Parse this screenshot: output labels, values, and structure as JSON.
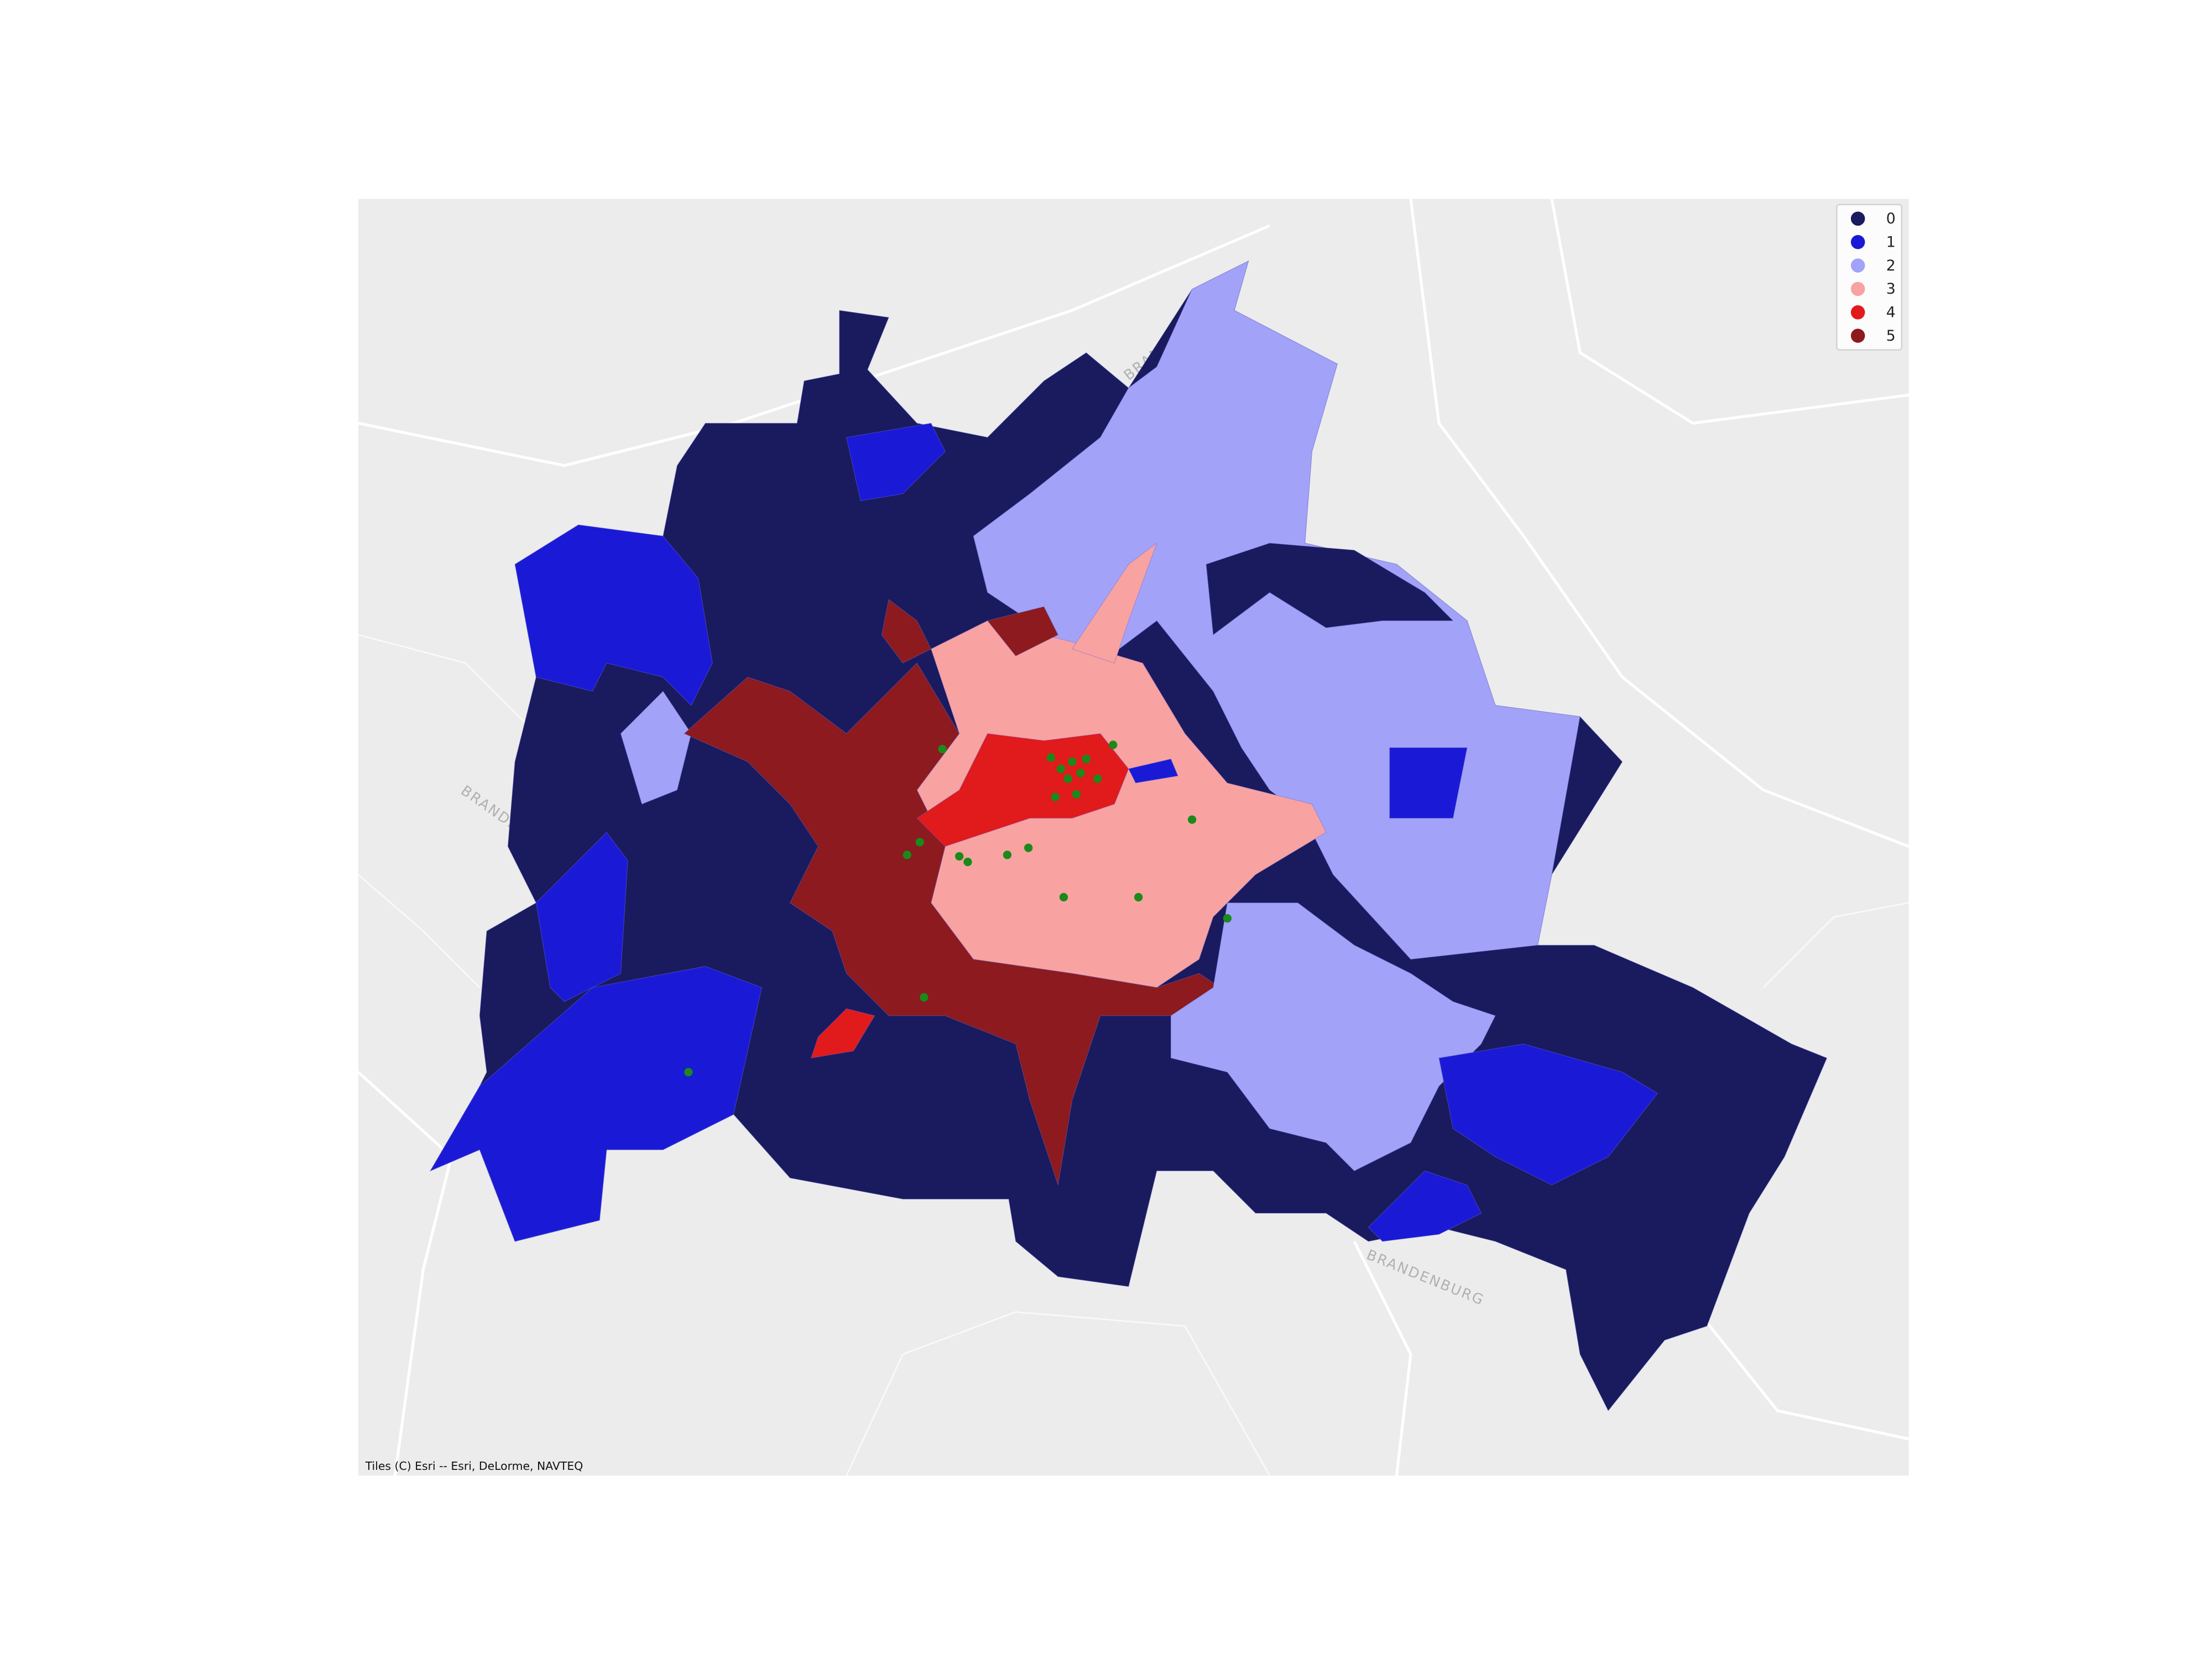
{
  "map": {
    "legend": [
      {
        "label": "0",
        "color": "#1a1a5e"
      },
      {
        "label": "1",
        "color": "#1a1ad6"
      },
      {
        "label": "2",
        "color": "#a2a2f8"
      },
      {
        "label": "3",
        "color": "#f8a2a2"
      },
      {
        "label": "4",
        "color": "#e11a1c"
      },
      {
        "label": "5",
        "color": "#8c1a1e"
      }
    ],
    "place_labels": [
      "BRANDENBURG",
      "BRANDENBURG",
      "BRANDENBURG"
    ],
    "attribution": "Tiles (C) Esri -- Esri, DeLorme, NAVTEQ"
  }
}
